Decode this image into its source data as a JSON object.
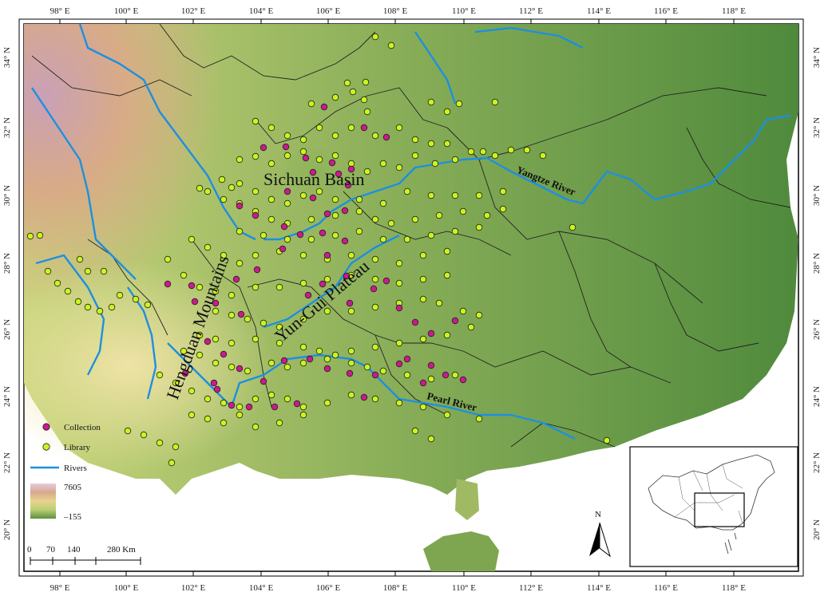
{
  "map": {
    "lon_labels": [
      "98° E",
      "100° E",
      "102° E",
      "104° E",
      "106° E",
      "108° E",
      "110° E",
      "112° E",
      "114° E",
      "116° E",
      "118° E"
    ],
    "lat_labels": [
      "34° N",
      "32° N",
      "30° N",
      "28° N",
      "26° N",
      "24° N",
      "22° N",
      "20° N"
    ],
    "regions": {
      "sichuan_basin": "Sichuan Basin",
      "hengduan": "Hengduan Mountains",
      "yungui": "Yun-Gui Plateau"
    },
    "rivers": {
      "yangtze": "Yangtze River",
      "pearl": "Pearl River"
    },
    "north_arrow": "N"
  },
  "legend": {
    "collection": "Collection",
    "library": "Library",
    "rivers": "Rivers",
    "elev_max": "7605",
    "elev_min": "–155"
  },
  "scale_bar": {
    "labels": [
      "0",
      "70",
      "140",
      "",
      "280 Km"
    ]
  },
  "colors": {
    "collection": "#cc1a8c",
    "library": "#c8f51e",
    "river": "#1e8fe0",
    "lowland": "#5e8f3e",
    "highland": "#d9b98a",
    "peak": "#d3a7c2"
  }
}
